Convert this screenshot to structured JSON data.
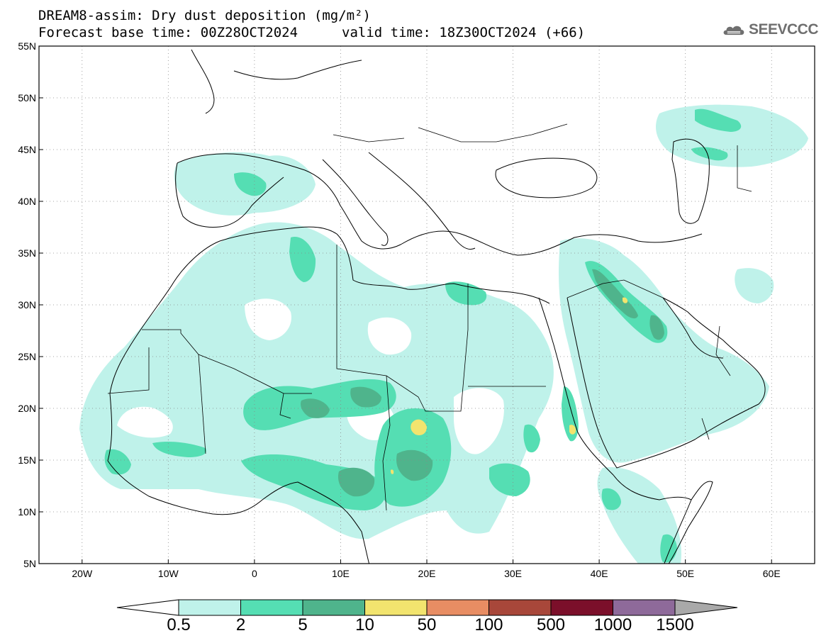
{
  "title": {
    "line1": "DREAM8-assim: Dry dust deposition (mg/m²)",
    "line2": "Forecast base time: 00Z28OCT2024",
    "valid": "valid time: 18Z30OCT2024 (+66)"
  },
  "logo": {
    "text": "SEEVCCC",
    "icon": "cloud-icon",
    "color": "#6f6f6f"
  },
  "map": {
    "lon_range": [
      -25,
      65
    ],
    "lat_range": [
      5,
      55
    ],
    "lat_ticks": [
      {
        "value": 55,
        "label": "55N"
      },
      {
        "value": 50,
        "label": "50N"
      },
      {
        "value": 45,
        "label": "45N"
      },
      {
        "value": 40,
        "label": "40N"
      },
      {
        "value": 35,
        "label": "35N"
      },
      {
        "value": 30,
        "label": "30N"
      },
      {
        "value": 25,
        "label": "25N"
      },
      {
        "value": 20,
        "label": "20N"
      },
      {
        "value": 15,
        "label": "15N"
      },
      {
        "value": 10,
        "label": "10N"
      },
      {
        "value": 5,
        "label": "5N"
      }
    ],
    "lon_ticks": [
      {
        "value": -20,
        "label": "20W"
      },
      {
        "value": -10,
        "label": "10W"
      },
      {
        "value": 0,
        "label": "0"
      },
      {
        "value": 10,
        "label": "10E"
      },
      {
        "value": 20,
        "label": "20E"
      },
      {
        "value": 30,
        "label": "30E"
      },
      {
        "value": 40,
        "label": "40E"
      },
      {
        "value": 50,
        "label": "50E"
      },
      {
        "value": 60,
        "label": "60E"
      }
    ],
    "grid": true,
    "grid_style": "dotted"
  },
  "colorbar": {
    "colors": [
      "#bff2ea",
      "#55deb3",
      "#4fb48c",
      "#f2e46e",
      "#e88d63",
      "#a8473a",
      "#7b0f2a",
      "#8e6a9a",
      "#a9a9a9"
    ],
    "labels": [
      "0.5",
      "2",
      "5",
      "10",
      "50",
      "100",
      "500",
      "1000",
      "1500"
    ],
    "under_color": "#ffffff",
    "over_color": "#a9a9a9"
  }
}
